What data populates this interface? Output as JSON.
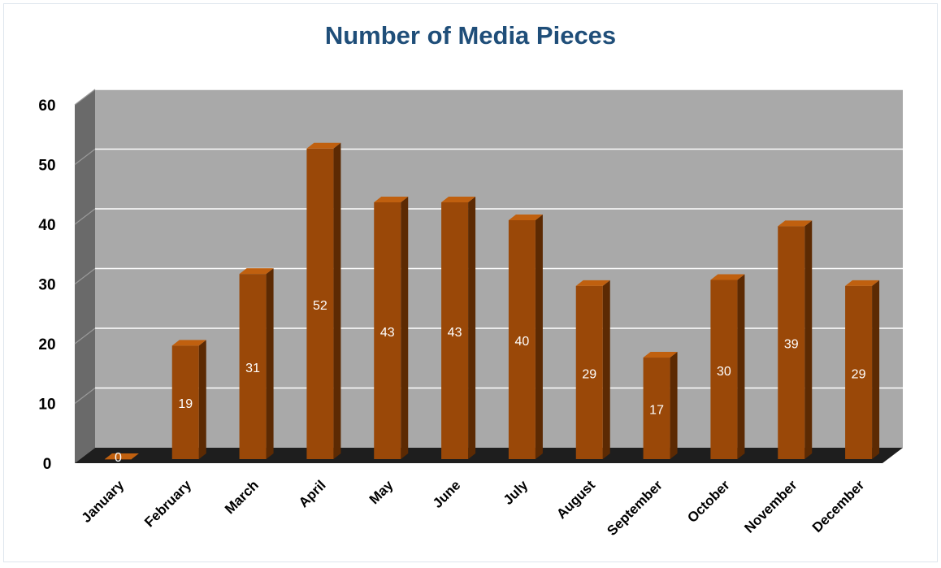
{
  "chart_data": {
    "type": "bar",
    "title": "Number of Media Pieces",
    "xlabel": "",
    "ylabel": "",
    "categories": [
      "January",
      "February",
      "March",
      "April",
      "May",
      "June",
      "July",
      "August",
      "September",
      "October",
      "November",
      "December"
    ],
    "values": [
      0,
      19,
      31,
      52,
      43,
      43,
      40,
      29,
      17,
      30,
      39,
      29
    ],
    "ylim": [
      0,
      60
    ],
    "yticks": [
      "0",
      "10",
      "20",
      "30",
      "40",
      "50",
      "60"
    ],
    "grid": true,
    "legend": "none",
    "style": "3d-column",
    "colors": {
      "bar_front": "#9a4808",
      "bar_side": "#5c2a03",
      "bar_top": "#c0600f",
      "back_wall": "#a9a9a9",
      "side_wall": "#6a6a6a",
      "floor": "#1e1e1e",
      "gridline": "#ffffff",
      "data_label": "#ffffff",
      "title": "#1f4e79",
      "axis_text": "#000000"
    }
  }
}
